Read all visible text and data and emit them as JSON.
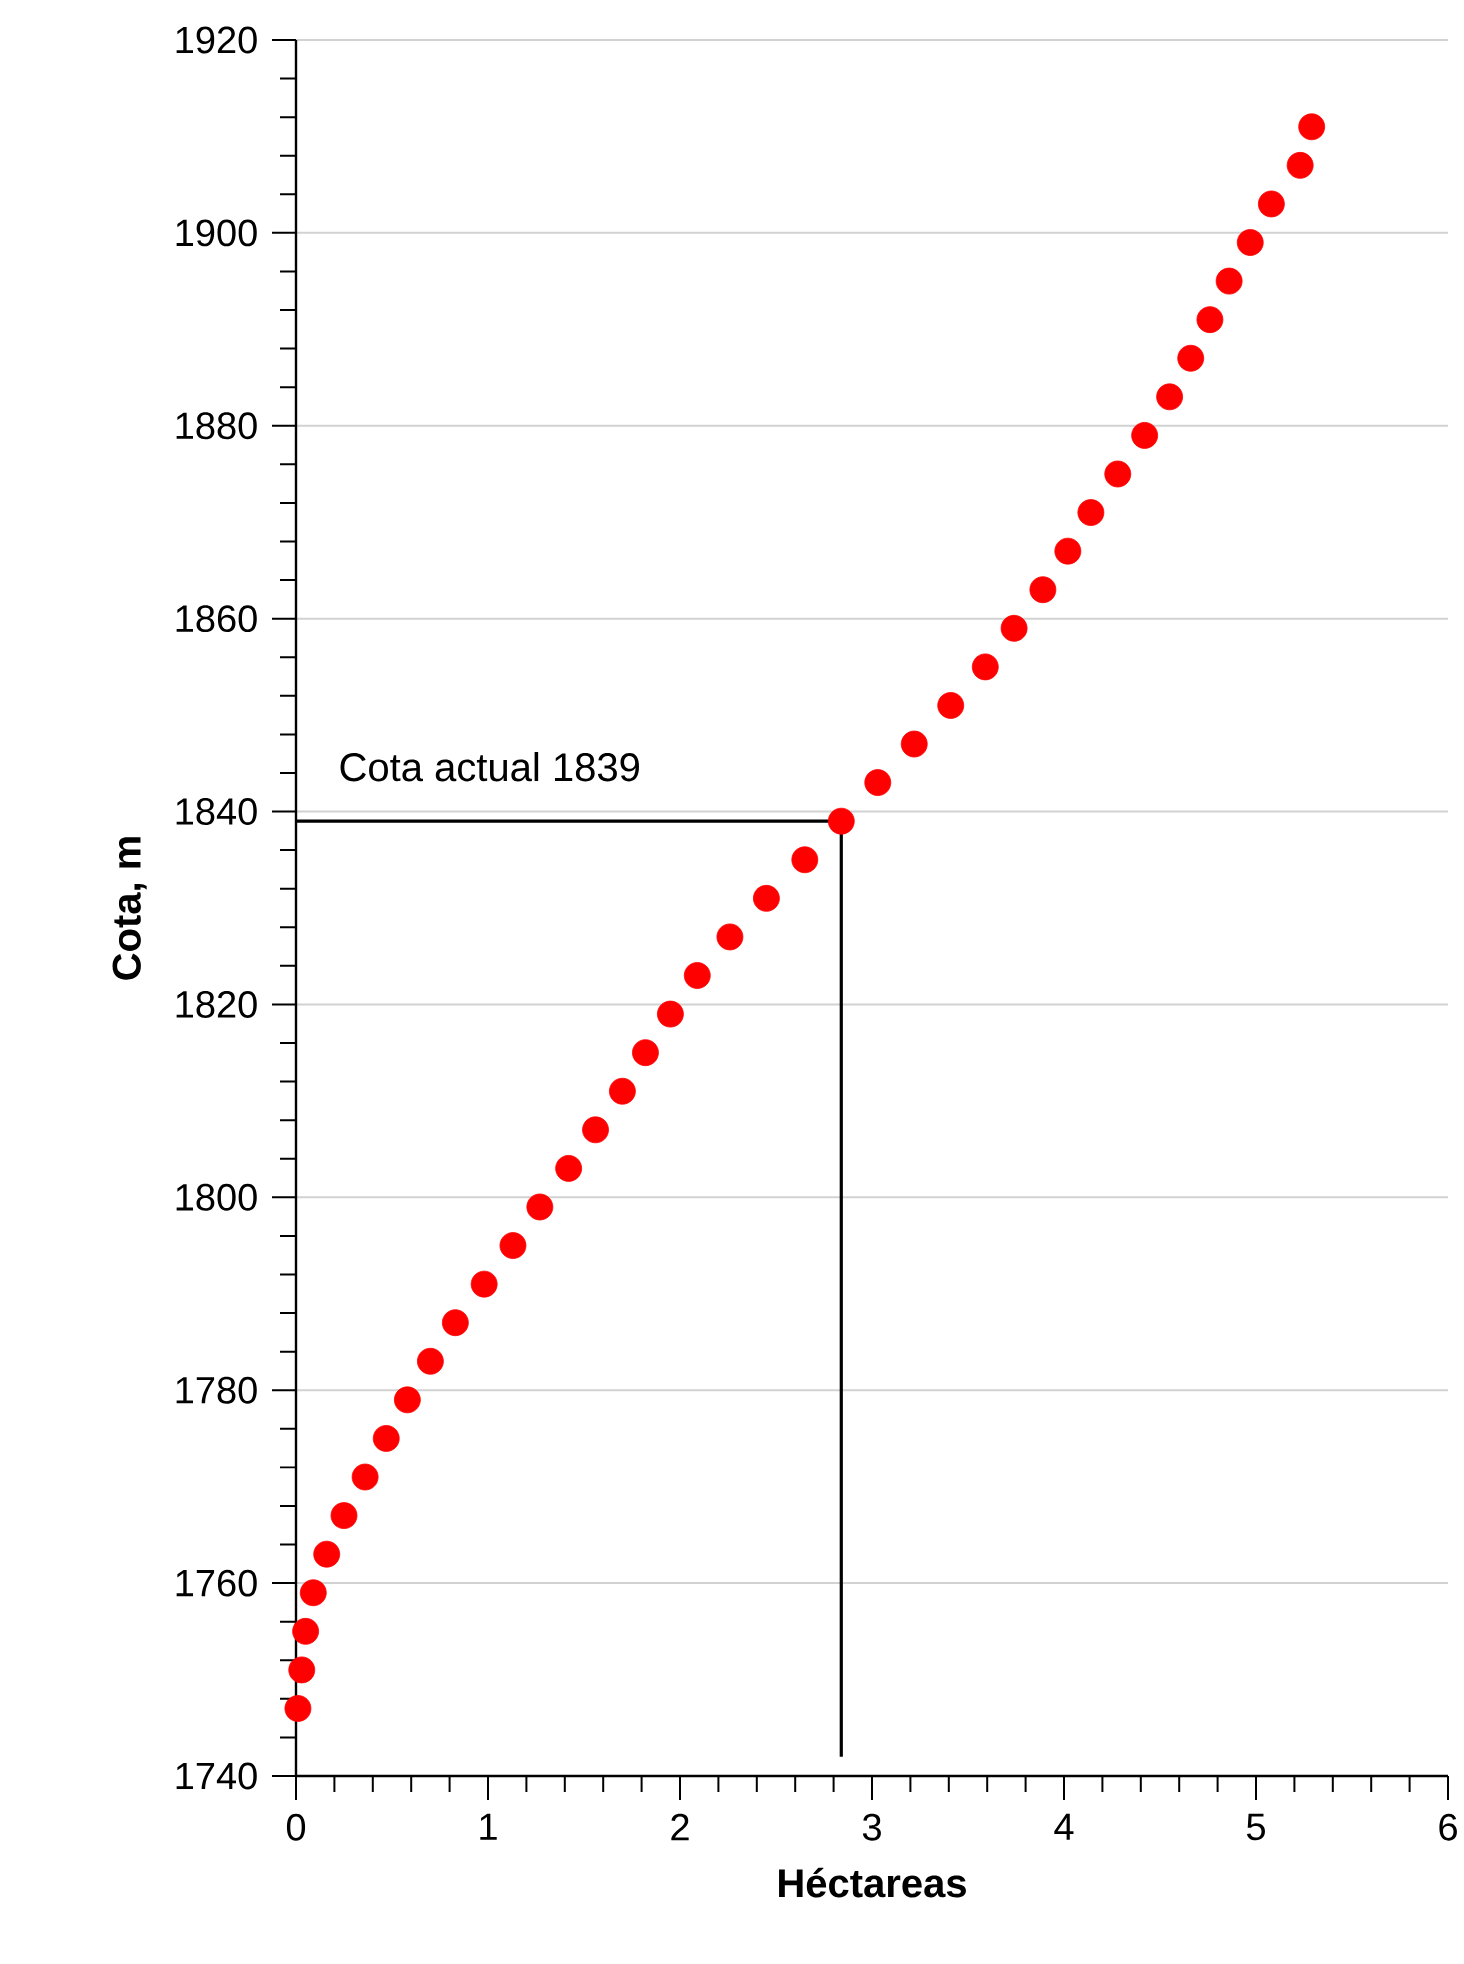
{
  "chart_data": {
    "type": "scatter",
    "xlabel": "Héctareas",
    "ylabel": "Cota, m",
    "xlim": [
      0,
      6
    ],
    "ylim": [
      1740,
      1920
    ],
    "xticks": [
      0,
      1,
      2,
      3,
      4,
      5,
      6
    ],
    "yticks": [
      1740,
      1760,
      1780,
      1800,
      1820,
      1840,
      1860,
      1880,
      1900,
      1920
    ],
    "grid": "y",
    "annotations": [
      "Cota actual 1839"
    ],
    "series": [
      {
        "color": "#ff0000",
        "marker": "circle",
        "x": [
          0.01,
          0.03,
          0.05,
          0.09,
          0.16,
          0.25,
          0.36,
          0.47,
          0.58,
          0.7,
          0.83,
          0.98,
          1.13,
          1.27,
          1.42,
          1.56,
          1.7,
          1.82,
          1.95,
          2.09,
          2.26,
          2.45,
          2.65,
          2.84,
          3.03,
          3.22,
          3.41,
          3.59,
          3.74,
          3.89,
          4.02,
          4.14,
          4.28,
          4.42,
          4.55,
          4.66,
          4.76,
          4.86,
          4.97,
          5.08,
          5.23,
          5.29
        ],
        "values": [
          1747,
          1751,
          1755,
          1759,
          1763,
          1767,
          1771,
          1775,
          1779,
          1783,
          1787,
          1791,
          1795,
          1799,
          1803,
          1807,
          1811,
          1815,
          1819,
          1823,
          1827,
          1831,
          1835,
          1839,
          1843,
          1847,
          1851,
          1855,
          1859,
          1863,
          1867,
          1871,
          1875,
          1879,
          1883,
          1887,
          1891,
          1895,
          1899,
          1903,
          1907,
          1911
        ]
      },
      {
        "type": "line",
        "color": "#000000",
        "marker": "none",
        "x": [
          0,
          2.84,
          2.84
        ],
        "values": [
          1839,
          1839,
          1742
        ]
      }
    ]
  }
}
